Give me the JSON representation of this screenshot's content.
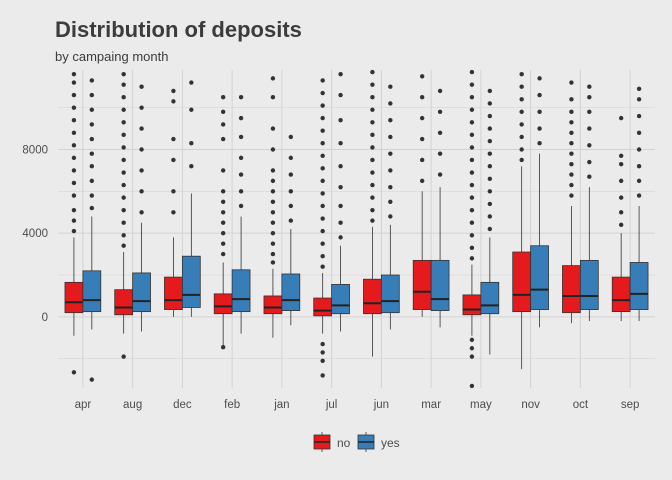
{
  "chart_data": {
    "type": "boxplot",
    "title": "Distribution of deposits",
    "subtitle": "by campaing month",
    "xlabel": "",
    "ylabel": "",
    "ylim": [
      -3400,
      11800
    ],
    "yticks": [
      0,
      4000,
      8000
    ],
    "grid": true,
    "legend_position": "bottom",
    "colors": {
      "no": "#e41a1c",
      "yes": "#377eb8",
      "background": "#ebebeb",
      "grid": "#d2d2d2"
    },
    "categories": [
      "apr",
      "aug",
      "dec",
      "feb",
      "jan",
      "jul",
      "jun",
      "mar",
      "may",
      "nov",
      "oct",
      "sep"
    ],
    "series": [
      {
        "name": "no",
        "boxes": [
          {
            "q1": 200,
            "median": 700,
            "q3": 1650,
            "whisker_low": -900,
            "whisker_high": 3800,
            "outliers": [
              -2650,
              4100,
              4600,
              5100,
              5800,
              6400,
              7000,
              7600,
              8200,
              8800,
              9400,
              10000,
              10600,
              11200,
              11600
            ]
          },
          {
            "q1": 100,
            "median": 450,
            "q3": 1300,
            "whisker_low": -800,
            "whisker_high": 3100,
            "outliers": [
              -1900,
              3400,
              3900,
              4500,
              5100,
              5700,
              6300,
              6900,
              7500,
              8100,
              8700,
              9300,
              9900,
              10500,
              11100,
              11600
            ]
          },
          {
            "q1": 350,
            "median": 800,
            "q3": 1900,
            "whisker_low": 0,
            "whisker_high": 3800,
            "outliers": [
              5000,
              6000,
              7500,
              8500,
              10300,
              10800
            ]
          },
          {
            "q1": 150,
            "median": 500,
            "q3": 1100,
            "whisker_low": -1400,
            "whisker_high": 2600,
            "outliers": [
              -1450,
              3000,
              3500,
              4000,
              4500,
              5000,
              5500,
              6000,
              7000,
              8500,
              9200,
              9800,
              10500
            ]
          },
          {
            "q1": 150,
            "median": 450,
            "q3": 1000,
            "whisker_low": -1000,
            "whisker_high": 2300,
            "outliers": [
              2600,
              3000,
              3500,
              4000,
              4500,
              5000,
              5500,
              6000,
              6500,
              7000,
              8000,
              9000,
              10500,
              11400
            ]
          },
          {
            "q1": 50,
            "median": 300,
            "q3": 900,
            "whisker_low": -800,
            "whisker_high": 2100,
            "outliers": [
              -1300,
              -1700,
              -2100,
              -2800,
              2400,
              2900,
              3500,
              4100,
              4700,
              5300,
              5900,
              6500,
              7100,
              7700,
              8300,
              8900,
              9500,
              10100,
              10700,
              11300
            ]
          },
          {
            "q1": 150,
            "median": 650,
            "q3": 1800,
            "whisker_low": -1900,
            "whisker_high": 4300,
            "outliers": [
              4600,
              5100,
              5700,
              6300,
              6900,
              7500,
              8100,
              8700,
              9300,
              9900,
              10500,
              11100,
              11700
            ]
          },
          {
            "q1": 350,
            "median": 1200,
            "q3": 2700,
            "whisker_low": 0,
            "whisker_high": 6000,
            "outliers": [
              6500,
              7500,
              8500,
              9500,
              10500,
              11500
            ]
          },
          {
            "q1": 100,
            "median": 350,
            "q3": 1050,
            "whisker_low": -900,
            "whisker_high": 2500,
            "outliers": [
              -1100,
              -1500,
              -1900,
              -3300,
              2800,
              3300,
              3900,
              4500,
              5100,
              5700,
              6300,
              6900,
              7500,
              8100,
              8700,
              9300,
              9900,
              10500,
              11100,
              11700
            ]
          },
          {
            "q1": 250,
            "median": 1050,
            "q3": 3100,
            "whisker_low": -2500,
            "whisker_high": 7200,
            "outliers": [
              7500,
              8000,
              8600,
              9200,
              9800,
              10400,
              11000,
              11600
            ]
          },
          {
            "q1": 200,
            "median": 1000,
            "q3": 2450,
            "whisker_low": -300,
            "whisker_high": 5300,
            "outliers": [
              5800,
              6300,
              6800,
              7300,
              7800,
              8300,
              8800,
              9300,
              9800,
              10400,
              11200
            ]
          },
          {
            "q1": 250,
            "median": 800,
            "q3": 1900,
            "whisker_low": -200,
            "whisker_high": 4000,
            "outliers": [
              4400,
              5000,
              5700,
              6500,
              7300,
              7700,
              9500
            ]
          }
        ]
      },
      {
        "name": "yes",
        "boxes": [
          {
            "q1": 250,
            "median": 800,
            "q3": 2200,
            "whisker_low": -600,
            "whisker_high": 4800,
            "outliers": [
              -3000,
              5200,
              5800,
              6500,
              7200,
              7800,
              8500,
              9200,
              9900,
              10600,
              11300
            ]
          },
          {
            "q1": 250,
            "median": 750,
            "q3": 2100,
            "whisker_low": -700,
            "whisker_high": 4500,
            "outliers": [
              5000,
              6000,
              7000,
              8000,
              9000,
              10000,
              11000
            ]
          },
          {
            "q1": 450,
            "median": 1050,
            "q3": 2900,
            "whisker_low": 0,
            "whisker_high": 5900,
            "outliers": [
              7200,
              8300,
              9900,
              11200
            ]
          },
          {
            "q1": 250,
            "median": 850,
            "q3": 2250,
            "whisker_low": -800,
            "whisker_high": 4800,
            "outliers": [
              5300,
              6000,
              6800,
              7600,
              8600,
              9500,
              10500
            ]
          },
          {
            "q1": 300,
            "median": 800,
            "q3": 2050,
            "whisker_low": -400,
            "whisker_high": 4200,
            "outliers": [
              4600,
              5300,
              6000,
              6800,
              7600,
              8600
            ]
          },
          {
            "q1": 150,
            "median": 550,
            "q3": 1550,
            "whisker_low": -700,
            "whisker_high": 3400,
            "outliers": [
              3800,
              4500,
              5300,
              6200,
              7200,
              8300,
              9400,
              10600,
              11600
            ]
          },
          {
            "q1": 200,
            "median": 750,
            "q3": 2000,
            "whisker_low": -600,
            "whisker_high": 4400,
            "outliers": [
              4800,
              5500,
              6200,
              7000,
              7800,
              8600,
              9400,
              10200,
              11000
            ]
          },
          {
            "q1": 300,
            "median": 850,
            "q3": 2700,
            "whisker_low": -500,
            "whisker_high": 6200,
            "outliers": [
              6800,
              7800,
              8800,
              9800,
              10800
            ]
          },
          {
            "q1": 150,
            "median": 550,
            "q3": 1650,
            "whisker_low": -1800,
            "whisker_high": 3800,
            "outliers": [
              4200,
              4800,
              5400,
              6000,
              6600,
              7200,
              7800,
              8400,
              9000,
              9600,
              10200,
              10800
            ]
          },
          {
            "q1": 350,
            "median": 1300,
            "q3": 3400,
            "whisker_low": -500,
            "whisker_high": 7800,
            "outliers": [
              8300,
              9000,
              9800,
              10600,
              11400
            ]
          },
          {
            "q1": 350,
            "median": 1000,
            "q3": 2700,
            "whisker_low": -200,
            "whisker_high": 6200,
            "outliers": [
              6700,
              7400,
              8200,
              9000,
              9800,
              10500,
              11000
            ]
          },
          {
            "q1": 350,
            "median": 1100,
            "q3": 2600,
            "whisker_low": -200,
            "whisker_high": 5300,
            "outliers": [
              5800,
              6500,
              7200,
              8000,
              8800,
              9600,
              10400,
              10900
            ]
          }
        ]
      }
    ]
  }
}
